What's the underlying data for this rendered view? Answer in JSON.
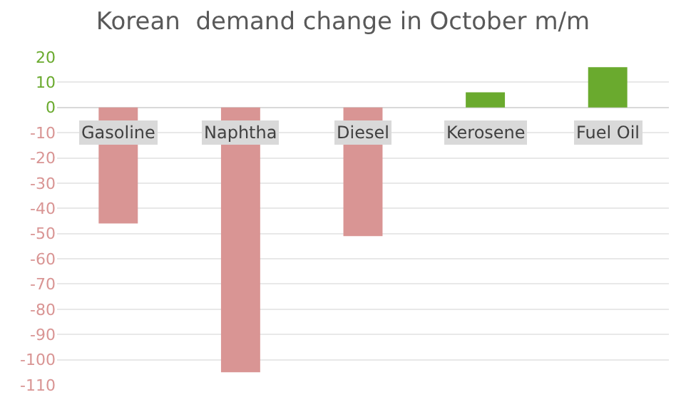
{
  "chart_data": {
    "type": "bar",
    "title": "Korean  demand change in October m/m",
    "categories": [
      "Gasoline",
      "Naphtha",
      "Diesel",
      "Kerosene",
      "Fuel Oil"
    ],
    "values": [
      -46,
      -105,
      -51,
      6,
      16
    ],
    "colors": [
      "#d99594",
      "#d99594",
      "#d99594",
      "#6aaa2e",
      "#6aaa2e"
    ],
    "ylim": [
      -110,
      20
    ],
    "yticks": [
      20,
      10,
      0,
      -10,
      -20,
      -30,
      -40,
      -50,
      -60,
      -70,
      -80,
      -90,
      -100,
      -110
    ],
    "grid": "y"
  }
}
